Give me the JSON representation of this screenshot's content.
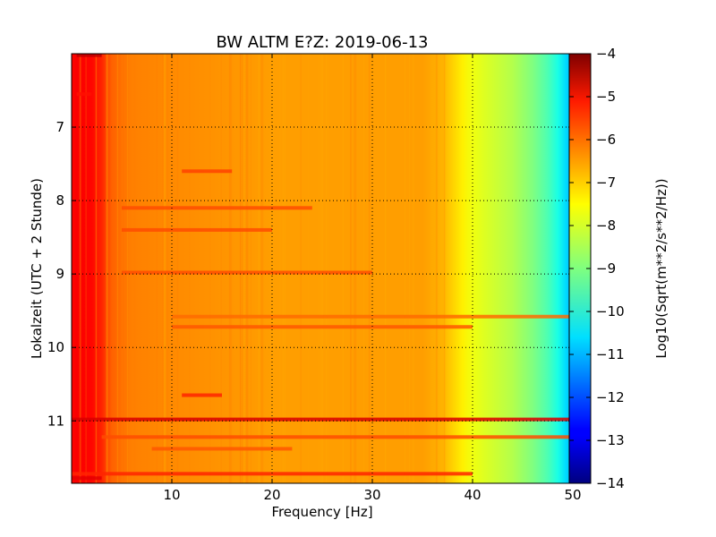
{
  "chart_data": {
    "type": "heatmap",
    "title": "BW ALTM E?Z: 2019-06-13",
    "xlabel": "Frequency [Hz]",
    "ylabel": "Lokalzeit (UTC + 2 Stunde)",
    "colorbar_label": "Log10(Sqrt(m**2/s**2/Hz))",
    "x_range": [
      0,
      50
    ],
    "y_range": [
      6,
      11.85
    ],
    "y_inverted": true,
    "x_ticks": [
      10,
      20,
      30,
      40,
      50
    ],
    "x_tick_labels": [
      "10",
      "20",
      "30",
      "40",
      "50"
    ],
    "y_ticks": [
      7,
      8,
      9,
      10,
      11
    ],
    "y_tick_labels": [
      "7",
      "8",
      "9",
      "10",
      "11"
    ],
    "color_range": [
      -14,
      -4
    ],
    "colorbar_ticks": [
      -4,
      -5,
      -6,
      -7,
      -8,
      -9,
      -10,
      -11,
      -12,
      -13,
      -14
    ],
    "colorbar_tick_labels": [
      "−4",
      "−5",
      "−6",
      "−7",
      "−8",
      "−9",
      "−10",
      "−11",
      "−12",
      "−13",
      "−14"
    ],
    "colormap": "jet",
    "grid": true,
    "grid_style": "dotted",
    "frequency_profile": [
      {
        "f": 0,
        "value": -5.3
      },
      {
        "f": 0.5,
        "value": -5.2
      },
      {
        "f": 2,
        "value": -5.3
      },
      {
        "f": 3,
        "value": -5.6
      },
      {
        "f": 4,
        "value": -6.2
      },
      {
        "f": 6,
        "value": -6.5
      },
      {
        "f": 10,
        "value": -6.6
      },
      {
        "f": 15,
        "value": -6.7
      },
      {
        "f": 20,
        "value": -6.8
      },
      {
        "f": 30,
        "value": -6.8
      },
      {
        "f": 35,
        "value": -6.8
      },
      {
        "f": 37,
        "value": -7.0
      },
      {
        "f": 38,
        "value": -7.3
      },
      {
        "f": 39,
        "value": -7.6
      },
      {
        "f": 40,
        "value": -7.9
      },
      {
        "f": 42,
        "value": -8.2
      },
      {
        "f": 44,
        "value": -8.5
      },
      {
        "f": 46,
        "value": -9.0
      },
      {
        "f": 47.5,
        "value": -9.5
      },
      {
        "f": 48.5,
        "value": -10.0
      },
      {
        "f": 49.3,
        "value": -10.6
      },
      {
        "f": 50,
        "value": -11.0
      }
    ],
    "bands": [
      {
        "time": 6.02,
        "f_start": 0.5,
        "f_end": 3,
        "value": -4.6
      },
      {
        "time": 6.55,
        "f_start": 0.5,
        "f_end": 2,
        "value": -5.4
      },
      {
        "time": 7.6,
        "f_start": 11,
        "f_end": 16,
        "value": -5.9
      },
      {
        "time": 8.1,
        "f_start": 5,
        "f_end": 24,
        "value": -6.0
      },
      {
        "time": 8.4,
        "f_start": 5,
        "f_end": 20,
        "value": -6.0
      },
      {
        "time": 8.98,
        "f_start": 5,
        "f_end": 30,
        "value": -6.0
      },
      {
        "time": 9.58,
        "f_start": 10,
        "f_end": 50,
        "value": -6.3
      },
      {
        "time": 9.72,
        "f_start": 10,
        "f_end": 40,
        "value": -6.1
      },
      {
        "time": 10.65,
        "f_start": 11,
        "f_end": 15,
        "value": -5.6
      },
      {
        "time": 10.98,
        "f_start": 0,
        "f_end": 50,
        "value": -4.9
      },
      {
        "time": 11.22,
        "f_start": 3,
        "f_end": 50,
        "value": -6.0
      },
      {
        "time": 11.38,
        "f_start": 8,
        "f_end": 22,
        "value": -6.1
      },
      {
        "time": 11.72,
        "f_start": 0,
        "f_end": 40,
        "value": -5.6
      },
      {
        "time": 11.78,
        "f_start": 0,
        "f_end": 3,
        "value": -5.0
      }
    ]
  }
}
